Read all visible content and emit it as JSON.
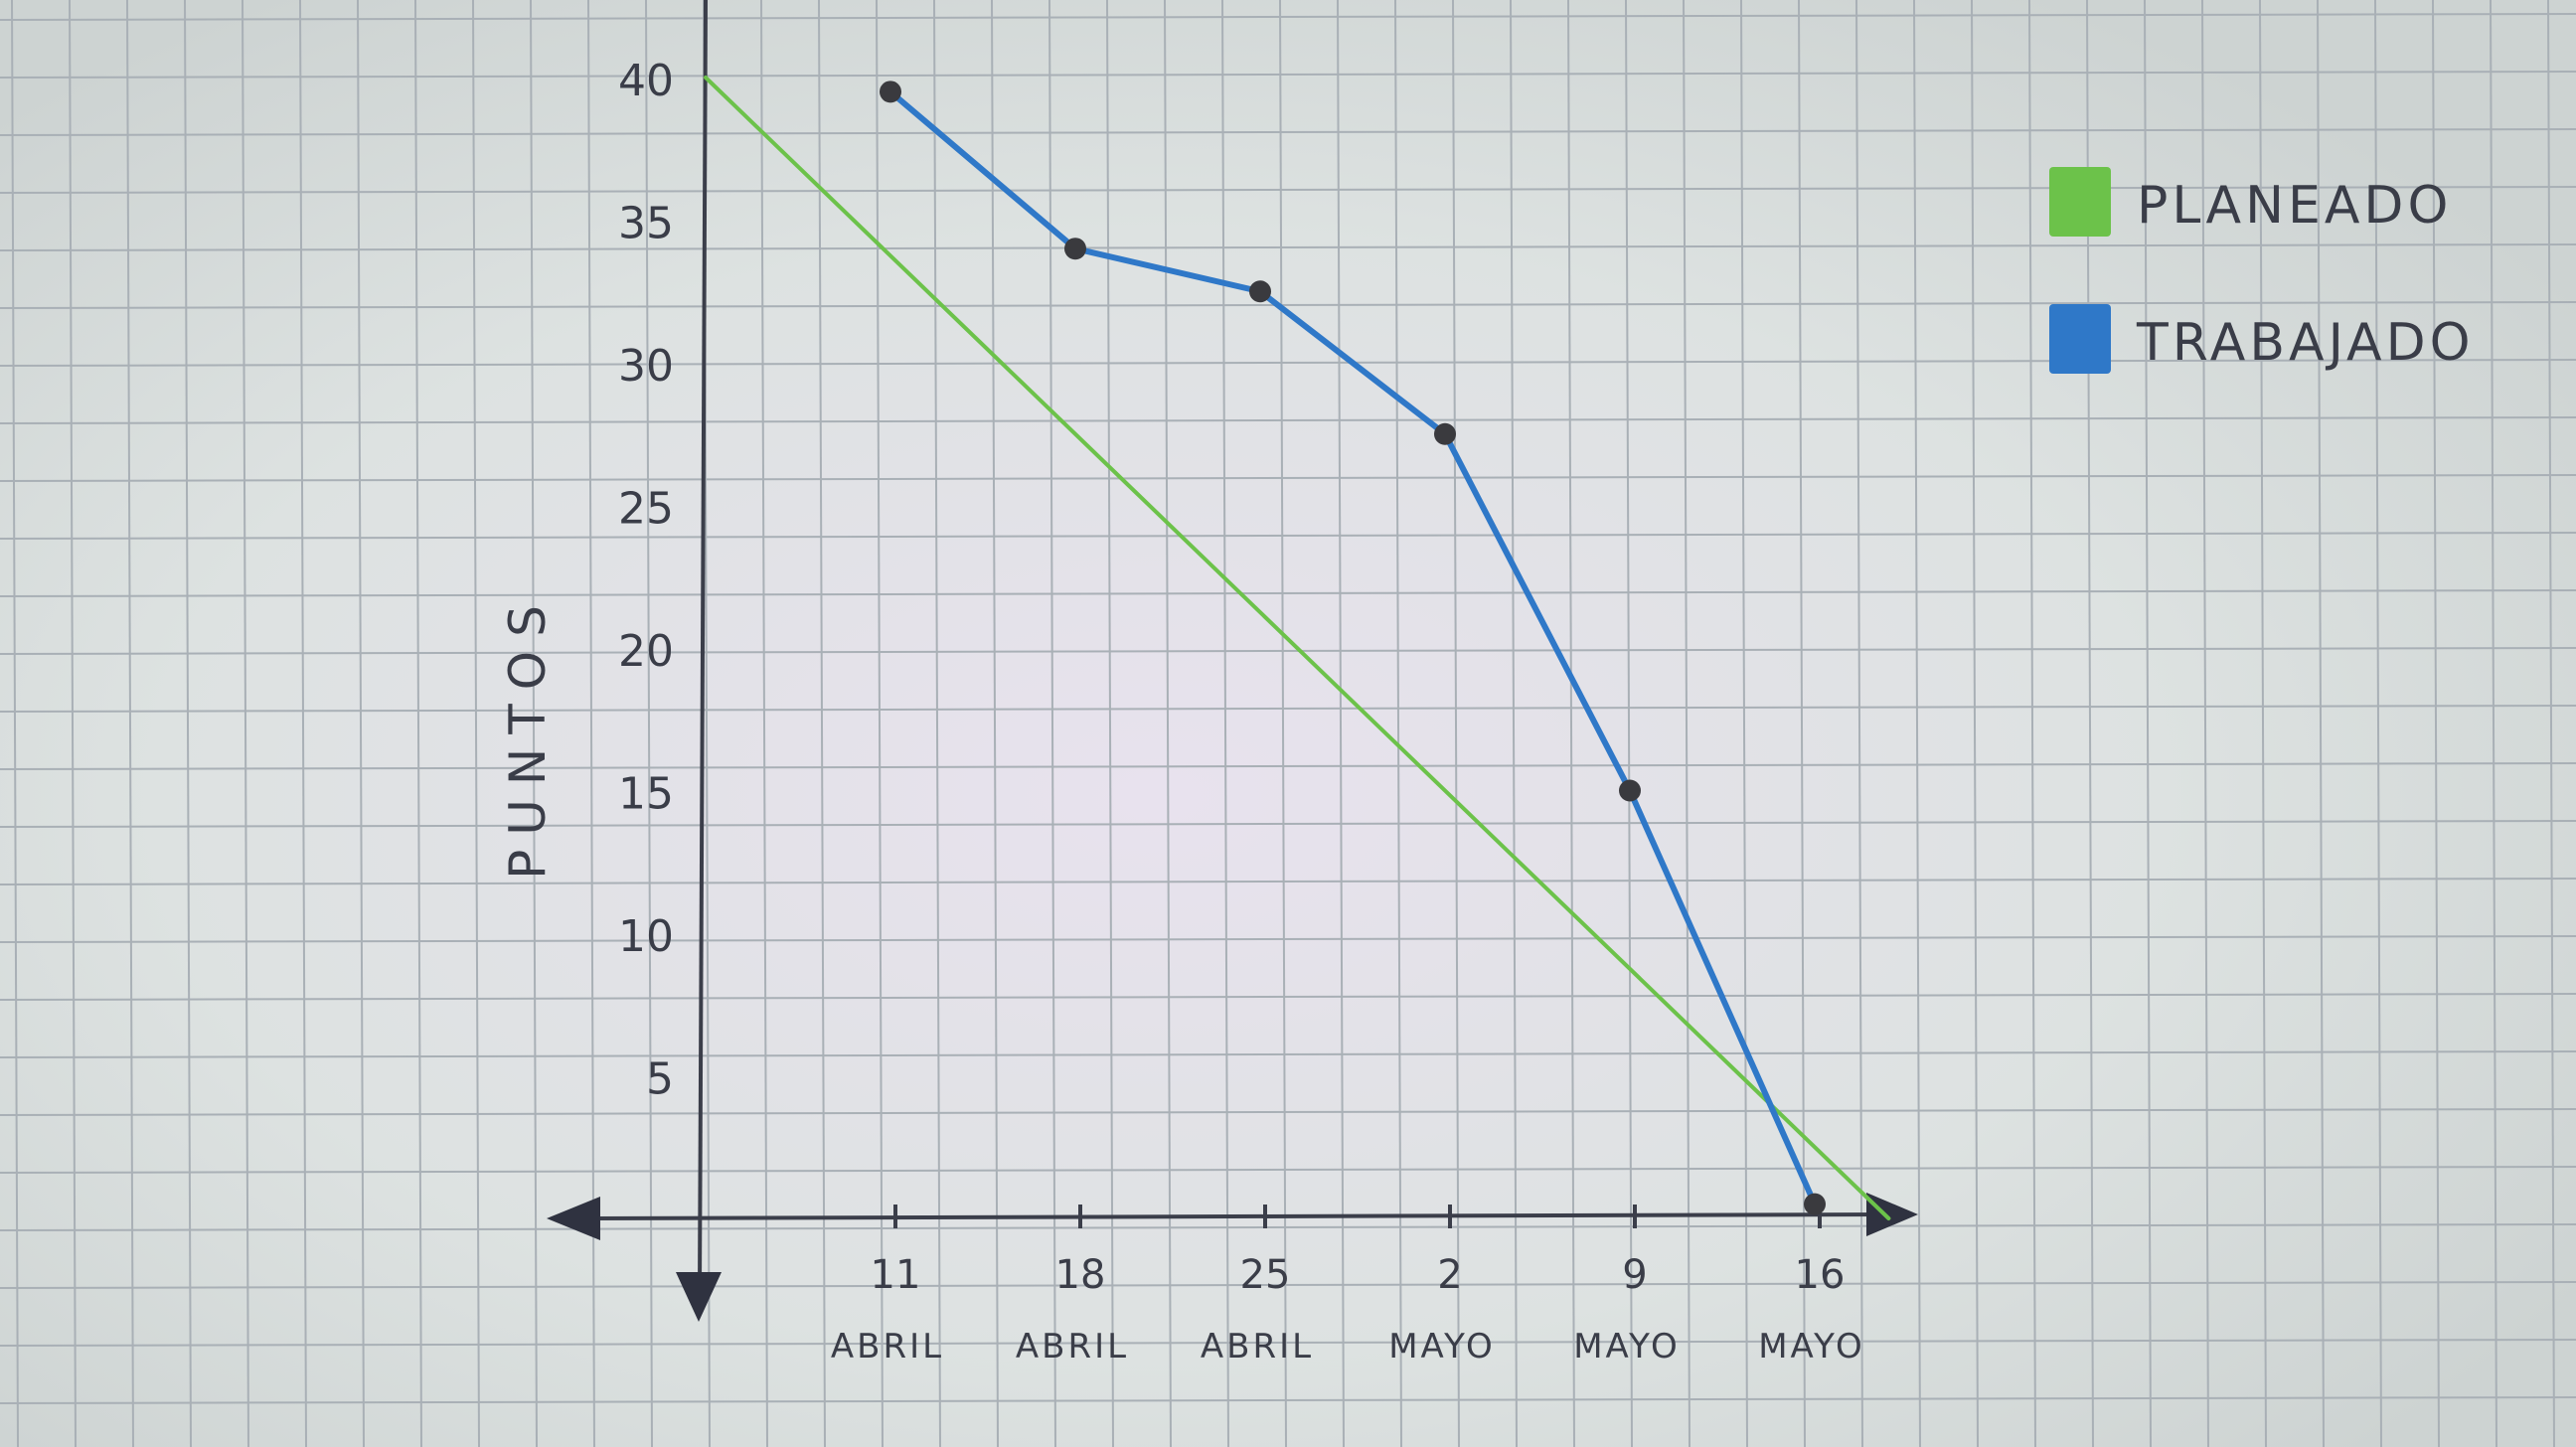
{
  "chart_data": {
    "type": "line",
    "ylabel": "PUNTOS",
    "yticks": [
      "5",
      "10",
      "15",
      "20",
      "25",
      "30",
      "35",
      "40"
    ],
    "ylim": [
      0,
      40
    ],
    "categories": [
      {
        "day": "11",
        "month": "ABRIL"
      },
      {
        "day": "18",
        "month": "ABRIL"
      },
      {
        "day": "25",
        "month": "ABRIL"
      },
      {
        "day": "2",
        "month": "MAYO"
      },
      {
        "day": "9",
        "month": "MAYO"
      },
      {
        "day": "16",
        "month": "MAYO"
      }
    ],
    "series": [
      {
        "name": "PLANEADO",
        "color": "#6cc24a",
        "x": [
          0,
          6.4
        ],
        "values": [
          40,
          0
        ]
      },
      {
        "name": "TRABAJADO",
        "color": "#2f78c8",
        "x": [
          1,
          2,
          3,
          4,
          5,
          6
        ],
        "values": [
          39.5,
          34,
          32.5,
          27.5,
          15,
          0.5
        ]
      }
    ],
    "legend_position": "top-right",
    "grid": true
  }
}
